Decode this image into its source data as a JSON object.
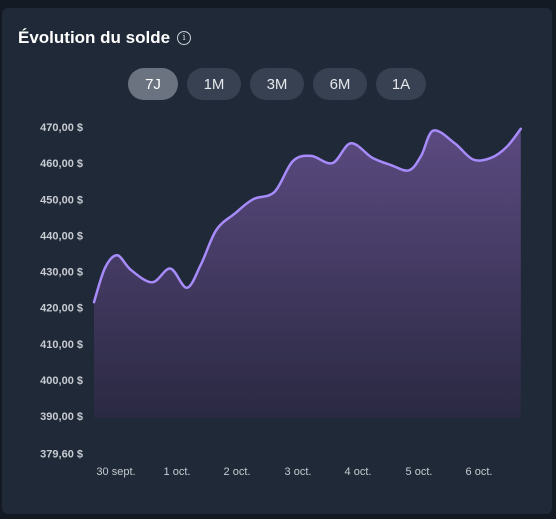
{
  "card": {
    "title": "Évolution du solde",
    "info_icon": "info-icon"
  },
  "range_tabs": [
    {
      "label": "7J",
      "active": true
    },
    {
      "label": "1M",
      "active": false
    },
    {
      "label": "3M",
      "active": false
    },
    {
      "label": "6M",
      "active": false
    },
    {
      "label": "1A",
      "active": false
    }
  ],
  "colors": {
    "line": "#a78bfa",
    "fill_top": "#5b4a80",
    "fill_bottom": "#2a2942",
    "card_bg": "#1f2937",
    "tab_bg": "#374151",
    "tab_active_bg": "#6b7380"
  },
  "chart_data": {
    "type": "area",
    "title": "Évolution du solde",
    "xlabel": "",
    "ylabel": "",
    "x_ticks": [
      "30 sept.",
      "1 oct.",
      "2 oct.",
      "3 oct.",
      "4 oct.",
      "5 oct.",
      "6 oct."
    ],
    "y_ticks": [
      "470,00 $",
      "460,00 $",
      "450,00 $",
      "440,00 $",
      "430,00 $",
      "420,00 $",
      "410,00 $",
      "400,00 $",
      "390,00 $",
      "379,60 $"
    ],
    "y_tick_values": [
      470,
      460,
      450,
      440,
      430,
      420,
      410,
      400,
      390,
      379.6
    ],
    "ylim": [
      379.6,
      470
    ],
    "x_range": [
      0,
      7
    ],
    "grid": false,
    "series": [
      {
        "values": [
          {
            "x": 0.0,
            "y": 421.5
          },
          {
            "x": 0.18,
            "y": 431.0
          },
          {
            "x": 0.38,
            "y": 434.5
          },
          {
            "x": 0.6,
            "y": 430.5
          },
          {
            "x": 0.95,
            "y": 427.0
          },
          {
            "x": 1.25,
            "y": 430.8
          },
          {
            "x": 1.52,
            "y": 425.5
          },
          {
            "x": 1.75,
            "y": 432.0
          },
          {
            "x": 2.0,
            "y": 441.5
          },
          {
            "x": 2.3,
            "y": 446.0
          },
          {
            "x": 2.6,
            "y": 450.0
          },
          {
            "x": 2.95,
            "y": 452.0
          },
          {
            "x": 3.25,
            "y": 460.5
          },
          {
            "x": 3.55,
            "y": 462.0
          },
          {
            "x": 3.9,
            "y": 460.0
          },
          {
            "x": 4.2,
            "y": 465.5
          },
          {
            "x": 4.55,
            "y": 461.5
          },
          {
            "x": 4.85,
            "y": 459.5
          },
          {
            "x": 5.15,
            "y": 458.0
          },
          {
            "x": 5.35,
            "y": 462.0
          },
          {
            "x": 5.55,
            "y": 469.0
          },
          {
            "x": 5.9,
            "y": 465.5
          },
          {
            "x": 6.2,
            "y": 461.0
          },
          {
            "x": 6.5,
            "y": 461.5
          },
          {
            "x": 6.75,
            "y": 464.5
          },
          {
            "x": 6.98,
            "y": 469.5
          }
        ]
      }
    ]
  }
}
